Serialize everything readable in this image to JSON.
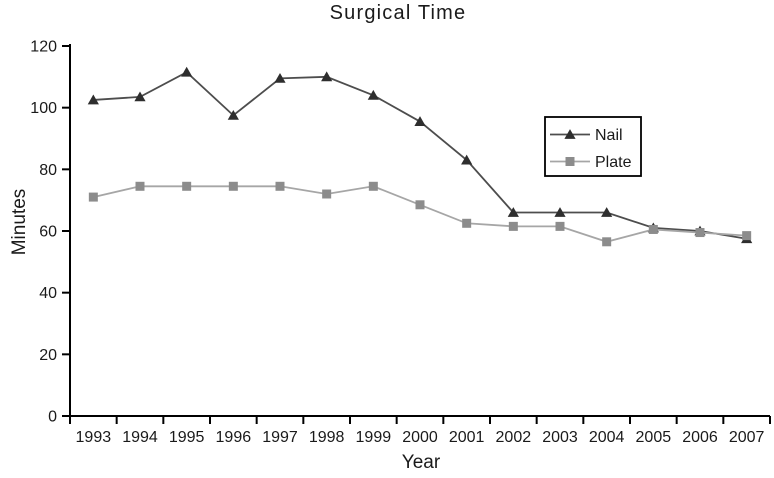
{
  "chart_data": {
    "type": "line",
    "title": "Surgical Time",
    "xlabel": "Year",
    "ylabel": "Minutes",
    "categories": [
      "1993",
      "1994",
      "1995",
      "1996",
      "1997",
      "1998",
      "1999",
      "2000",
      "2001",
      "2002",
      "2003",
      "2004",
      "2005",
      "2006",
      "2007"
    ],
    "series": [
      {
        "name": "Nail",
        "marker": "triangle",
        "line_color": "#4d4d4d",
        "marker_color": "#2e2e2e",
        "values": [
          102.5,
          103.5,
          111.5,
          97.5,
          109.5,
          110,
          104,
          95.5,
          83,
          66,
          66,
          66,
          61,
          60,
          57.5
        ]
      },
      {
        "name": "Plate",
        "marker": "square",
        "line_color": "#a6a6a6",
        "marker_color": "#8c8c8c",
        "values": [
          71,
          74.5,
          74.5,
          74.5,
          74.5,
          72,
          74.5,
          68.5,
          62.5,
          61.5,
          61.5,
          56.5,
          60.5,
          59.5,
          58.5
        ]
      }
    ],
    "ylim": [
      0,
      120
    ],
    "yticks": [
      0,
      20,
      40,
      60,
      80,
      100,
      120
    ],
    "grid": "off",
    "legend_position": "center-right",
    "axis_color": "#000000",
    "background": "#ffffff"
  }
}
